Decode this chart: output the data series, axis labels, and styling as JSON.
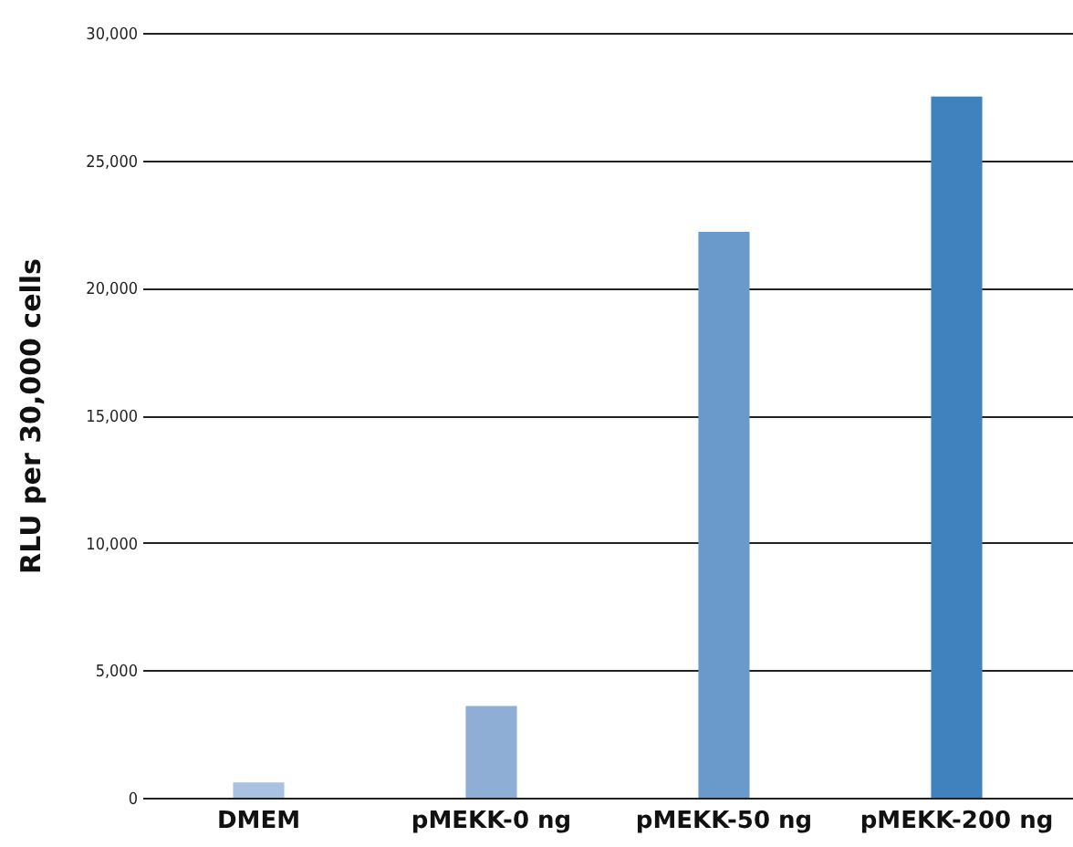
{
  "chart_data": {
    "type": "bar",
    "ylabel": "RLU per 30,000 cells",
    "categories": [
      "DMEM",
      "pMEKK-0 ng",
      "pMEKK-50 ng",
      "pMEKK-200 ng"
    ],
    "values": [
      600,
      3600,
      22200,
      27500
    ],
    "colors": [
      "#a9c2e2",
      "#8eaed6",
      "#6a9acb",
      "#3f82be"
    ],
    "ylim": [
      0,
      30000
    ],
    "yticks": [
      0,
      {
        "value": 5000,
        "label": "5,000"
      },
      {
        "value": 10000,
        "label": "10,000"
      },
      {
        "value": 15000,
        "label": "15,000"
      },
      {
        "value": 20000,
        "label": "20,000"
      },
      {
        "value": 25000,
        "label": "25,000"
      },
      {
        "value": 30000,
        "label": "30,000"
      }
    ],
    "grid": "y"
  }
}
